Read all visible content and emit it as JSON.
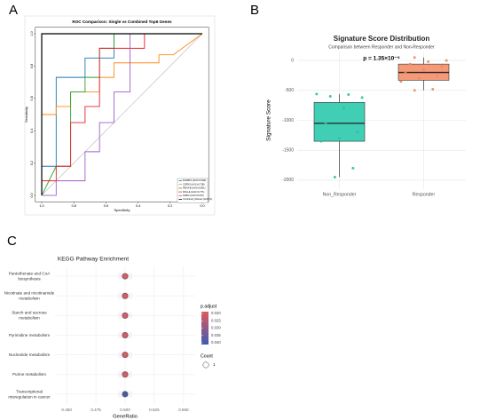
{
  "chart_data": [
    {
      "type": "roc",
      "panel_label": "A",
      "title": "ROC Comparison: Single vs Combined Top6 Genes",
      "x_label": "Specificity",
      "y_label": "Sensitivity",
      "xlim": [
        1.04,
        -0.04
      ],
      "ylim": [
        -0.04,
        1.04
      ],
      "xticks": [
        {
          "value": 1,
          "label": "1.0"
        },
        0.8,
        0.6,
        0.4,
        0.2,
        {
          "value": 0,
          "label": "0.0"
        }
      ],
      "yticks": [
        {
          "value": 0,
          "label": "0.0"
        },
        0.2,
        0.4,
        0.6,
        0.8,
        {
          "value": 1,
          "label": "1.0"
        }
      ],
      "series": [
        {
          "name": "RUFBK1 (AUC=0.844)",
          "color": "#1f77b4",
          "x": [
            1,
            0.91,
            0.91,
            0.73,
            0.73,
            0.55,
            0.55,
            0
          ],
          "values": [
            0.18,
            0.18,
            0.73,
            0.73,
            0.85,
            0.85,
            1,
            1
          ]
        },
        {
          "name": "CSPN3 (AUC=0.708)",
          "color": "#ff8c1a",
          "x": [
            1,
            0.91,
            0.91,
            0.82,
            0.82,
            0.64,
            0.64,
            0.55,
            0.55,
            0.27,
            0.27,
            0.18,
            0
          ],
          "values": [
            0.5,
            0.5,
            0.55,
            0.55,
            0.64,
            0.64,
            0.73,
            0.73,
            0.82,
            0.82,
            0.87,
            0.87,
            1
          ]
        },
        {
          "name": "PEG4-B (AUC=0.801)",
          "color": "#2ca02c",
          "x": [
            1,
            0.91,
            0.82,
            0.82,
            0.73,
            0.73,
            0.64,
            0.64,
            0.55,
            0.55,
            0
          ],
          "values": [
            0,
            0.18,
            0.18,
            0.64,
            0.64,
            0.73,
            0.73,
            0.91,
            0.91,
            1,
            1
          ]
        },
        {
          "name": "PAGLE (AUC=0.771)",
          "color": "#e8202a",
          "x": [
            1,
            0.91,
            0.91,
            0.82,
            0.82,
            0.73,
            0.73,
            0.64,
            0.64,
            0.36,
            0.36,
            0
          ],
          "values": [
            0.09,
            0.09,
            0.18,
            0.18,
            0.45,
            0.45,
            0.55,
            0.55,
            0.91,
            0.91,
            1,
            1
          ]
        },
        {
          "name": "KMPG (AUC=0.670)",
          "color": "#a05fc8",
          "x": [
            1,
            0.91,
            0.91,
            0.73,
            0.73,
            0.64,
            0.64,
            0.55,
            0.55,
            0.45,
            0.45,
            0
          ],
          "values": [
            0,
            0,
            0.09,
            0.09,
            0.27,
            0.27,
            0.45,
            0.45,
            0.64,
            0.64,
            1,
            1
          ]
        },
        {
          "name": "Combined_6Genes (AUC=1)",
          "color": "#000000",
          "x": [
            1,
            1,
            0
          ],
          "values": [
            0,
            1,
            1
          ]
        }
      ]
    },
    {
      "type": "box",
      "panel_label": "B",
      "title": "Signature Score Distribution",
      "subtitle": "Comparison between Responder and Non-Responder",
      "annotation": "p = 1.35×10⁻⁹",
      "y_label": "Signature Score",
      "categories": [
        "Non_Responder",
        "Responder"
      ],
      "colors": [
        "#40cfb5",
        "#f49a78"
      ],
      "point_colors": [
        "#2bbfa6",
        "#f08a5d"
      ],
      "ylim": [
        -2150,
        150
      ],
      "yticks": [
        0,
        -500,
        -1000,
        -1500,
        -2000
      ],
      "grid": true,
      "boxes": [
        {
          "min": -1950,
          "q1": -1350,
          "median": -1050,
          "q3": -700,
          "max": -560
        },
        {
          "min": -500,
          "q1": -330,
          "median": -200,
          "q3": -60,
          "max": 50
        }
      ],
      "points": [
        [
          -560,
          -570,
          -600,
          -620,
          -800,
          -1050,
          -1200,
          -1300,
          -1350,
          -1800,
          -1950
        ],
        [
          50,
          0,
          -20,
          -60,
          -100,
          -150,
          -200,
          -250,
          -300,
          -350,
          -480,
          -500
        ]
      ]
    },
    {
      "type": "dot",
      "panel_label": "C",
      "title": "KEGG Pathway Enrichment",
      "x_label": "GeneRatio",
      "categories": [
        "Pantothenate and CoA biosynthesis",
        "Nicotinate and nicotinamide metabolism",
        "Starch and sucrose metabolism",
        "Pyrimidine metabolism",
        "Nucleotide metabolism",
        "Purine metabolism",
        "Transcriptional misregulation in cancer"
      ],
      "values": [
        0.5,
        0.5,
        0.5,
        0.5,
        0.5,
        0.5,
        0.5
      ],
      "p_adjust": [
        0.021,
        0.021,
        0.021,
        0.021,
        0.021,
        0.021,
        0.039
      ],
      "count": [
        1,
        1,
        1,
        1,
        1,
        1,
        1
      ],
      "xlim": [
        0.44,
        0.56
      ],
      "xticks": [
        {
          "value": 0.45,
          "label": "0.450"
        },
        {
          "value": 0.475,
          "label": "0.475"
        },
        {
          "value": 0.5,
          "label": "0.500"
        },
        {
          "value": 0.525,
          "label": "0.525"
        },
        {
          "value": 0.55,
          "label": "0.550"
        }
      ],
      "color_title": "p.adjust",
      "colors": [
        "#e05a5f",
        "#3d5bb0"
      ],
      "color_ticks": [
        {
          "value": 0.02,
          "label": "0.020"
        },
        {
          "value": 0.025,
          "label": "0.025"
        },
        {
          "value": 0.03,
          "label": "0.030"
        },
        {
          "value": 0.035,
          "label": "0.035"
        },
        {
          "value": 0.04,
          "label": "0.040"
        }
      ],
      "size_title": "Count",
      "size_legend": [
        1
      ],
      "grid": true
    }
  ]
}
